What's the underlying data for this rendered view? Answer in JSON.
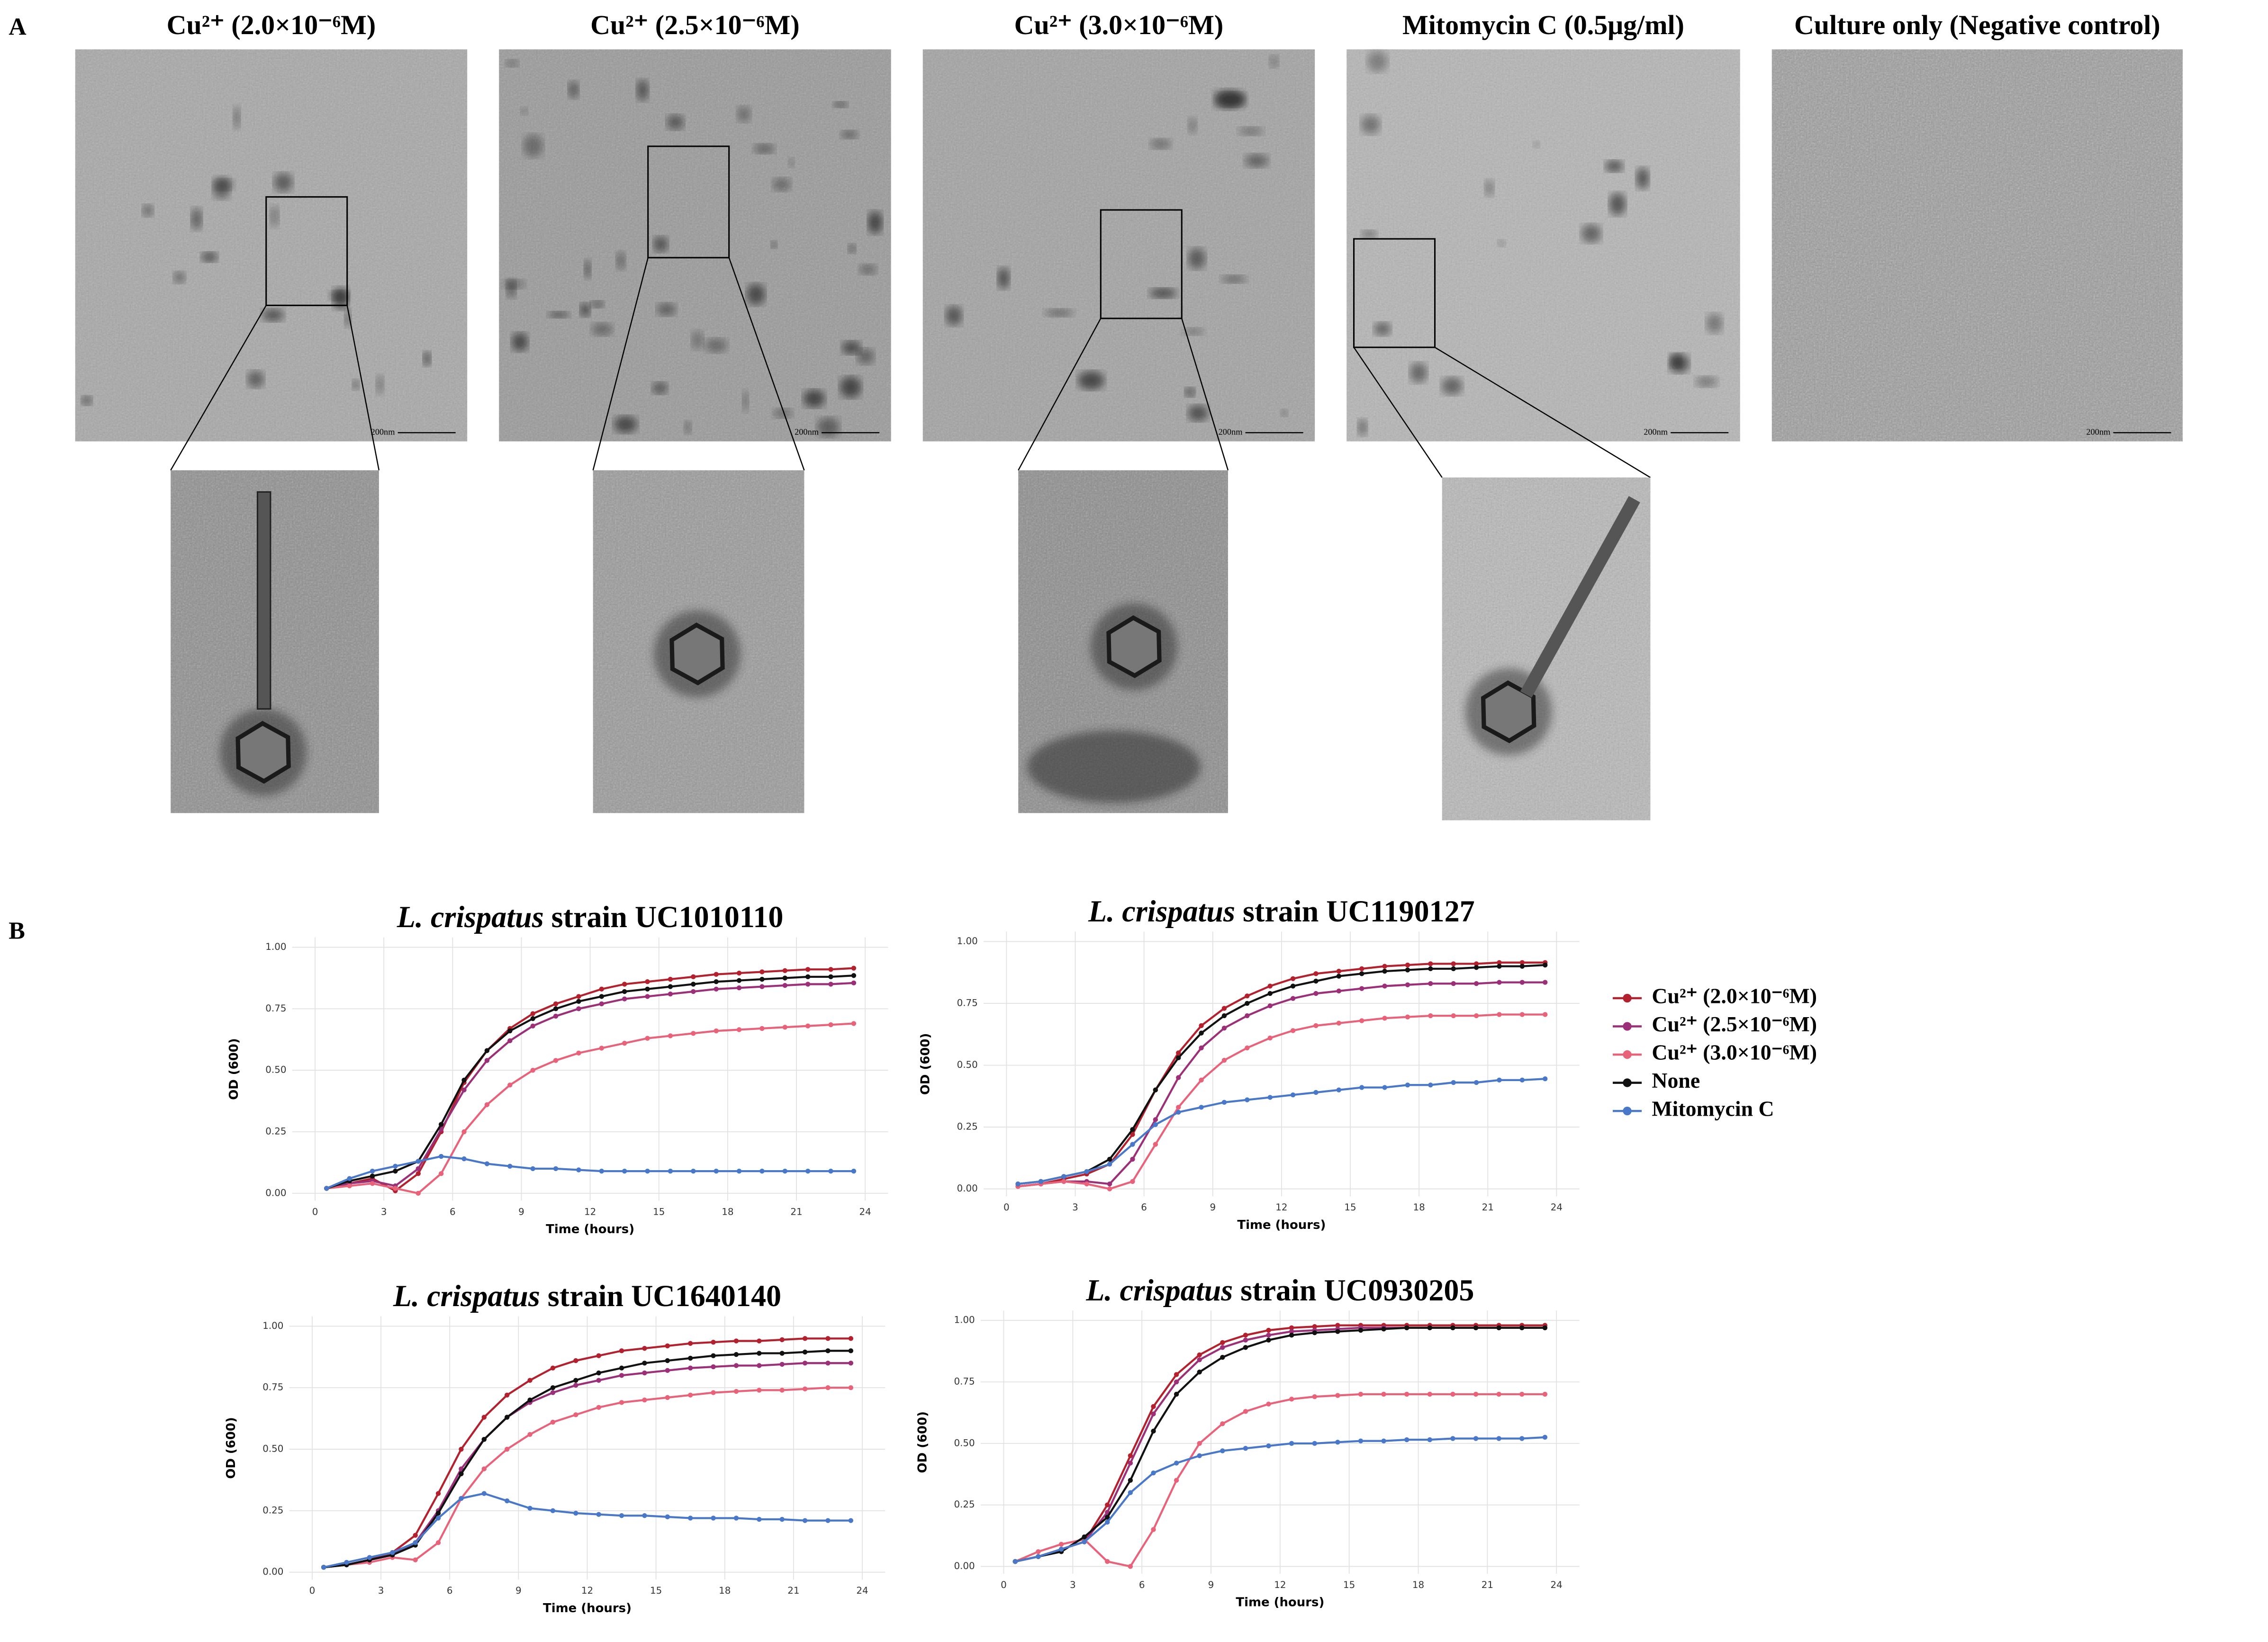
{
  "panel_a": {
    "label": "A",
    "micrographs": [
      {
        "title": "Cu²⁺ (2.0×10⁻⁶M)",
        "scale_bar": "200nm"
      },
      {
        "title": "Cu²⁺ (2.5×10⁻⁶M)",
        "scale_bar": "200nm"
      },
      {
        "title": "Cu²⁺ (3.0×10⁻⁶M)",
        "scale_bar": "200nm"
      },
      {
        "title": "Mitomycin C (0.5μg/ml)",
        "scale_bar": "200nm"
      },
      {
        "title": "Culture only (Negative control)",
        "scale_bar": "200nm"
      }
    ]
  },
  "panel_b": {
    "label": "B"
  },
  "chart_data": [
    {
      "type": "line",
      "title": {
        "species": "L. crispatus",
        "strain": "strain UC1010110"
      },
      "xlabel": "Time (hours)",
      "ylabel": "OD (600)",
      "grid": true,
      "xlim": [
        -1,
        25
      ],
      "ylim": [
        -0.03,
        1.04
      ],
      "xticks": [
        0,
        3,
        6,
        9,
        12,
        15,
        18,
        21,
        24
      ],
      "yticks": [
        {
          "value": 0,
          "label": "0.00"
        },
        {
          "value": 0.25,
          "label": "0.25"
        },
        {
          "value": 0.5,
          "label": "0.50"
        },
        {
          "value": 0.75,
          "label": "0.75"
        },
        {
          "value": 1,
          "label": "1.00"
        }
      ],
      "x": [
        0.5,
        1.5,
        2.5,
        3.5,
        4.5,
        5.5,
        6.5,
        7.5,
        8.5,
        9.5,
        10.5,
        11.5,
        12.5,
        13.5,
        14.5,
        15.5,
        16.5,
        17.5,
        18.5,
        19.5,
        20.5,
        21.5,
        22.5,
        23.5
      ],
      "series": [
        {
          "color": "#b3202e",
          "values": [
            0.02,
            0.04,
            0.06,
            0.01,
            0.08,
            0.25,
            0.45,
            0.58,
            0.67,
            0.73,
            0.77,
            0.8,
            0.83,
            0.85,
            0.86,
            0.87,
            0.88,
            0.89,
            0.895,
            0.9,
            0.905,
            0.91,
            0.91,
            0.915
          ]
        },
        {
          "color": "#9b2f78",
          "values": [
            0.02,
            0.04,
            0.05,
            0.03,
            0.1,
            0.26,
            0.42,
            0.54,
            0.62,
            0.68,
            0.72,
            0.75,
            0.77,
            0.79,
            0.8,
            0.81,
            0.82,
            0.83,
            0.835,
            0.84,
            0.845,
            0.85,
            0.85,
            0.855
          ]
        },
        {
          "color": "#e8637a",
          "values": [
            0.02,
            0.03,
            0.04,
            0.02,
            0.0,
            0.08,
            0.25,
            0.36,
            0.44,
            0.5,
            0.54,
            0.57,
            0.59,
            0.61,
            0.63,
            0.64,
            0.65,
            0.66,
            0.665,
            0.67,
            0.675,
            0.68,
            0.685,
            0.69
          ]
        },
        {
          "color": "#111111",
          "values": [
            0.02,
            0.05,
            0.07,
            0.09,
            0.13,
            0.28,
            0.46,
            0.58,
            0.66,
            0.71,
            0.75,
            0.78,
            0.8,
            0.82,
            0.83,
            0.84,
            0.85,
            0.86,
            0.865,
            0.87,
            0.875,
            0.88,
            0.88,
            0.885
          ]
        },
        {
          "color": "#4a78c8",
          "values": [
            0.02,
            0.06,
            0.09,
            0.11,
            0.13,
            0.15,
            0.14,
            0.12,
            0.11,
            0.1,
            0.1,
            0.095,
            0.09,
            0.09,
            0.09,
            0.09,
            0.09,
            0.09,
            0.09,
            0.09,
            0.09,
            0.09,
            0.09,
            0.09
          ]
        }
      ]
    },
    {
      "type": "line",
      "title": {
        "species": "L. crispatus",
        "strain": "strain UC1190127"
      },
      "xlabel": "Time (hours)",
      "ylabel": "OD (600)",
      "grid": true,
      "legend": "right",
      "xlim": [
        -1,
        25
      ],
      "ylim": [
        -0.03,
        1.04
      ],
      "xticks": [
        0,
        3,
        6,
        9,
        12,
        15,
        18,
        21,
        24
      ],
      "yticks": [
        {
          "value": 0,
          "label": "0.00"
        },
        {
          "value": 0.25,
          "label": "0.25"
        },
        {
          "value": 0.5,
          "label": "0.50"
        },
        {
          "value": 0.75,
          "label": "0.75"
        },
        {
          "value": 1,
          "label": "1.00"
        }
      ],
      "x": [
        0.5,
        1.5,
        2.5,
        3.5,
        4.5,
        5.5,
        6.5,
        7.5,
        8.5,
        9.5,
        10.5,
        11.5,
        12.5,
        13.5,
        14.5,
        15.5,
        16.5,
        17.5,
        18.5,
        19.5,
        20.5,
        21.5,
        22.5,
        23.5
      ],
      "series": [
        {
          "name": "Cu²⁺ (2.0×10⁻⁶M)",
          "color": "#b3202e",
          "values": [
            0.01,
            0.02,
            0.04,
            0.06,
            0.1,
            0.22,
            0.4,
            0.55,
            0.66,
            0.73,
            0.78,
            0.82,
            0.85,
            0.87,
            0.88,
            0.89,
            0.9,
            0.905,
            0.91,
            0.91,
            0.91,
            0.915,
            0.915,
            0.915
          ]
        },
        {
          "name": "Cu²⁺ (2.5×10⁻⁶M)",
          "color": "#9b2f78",
          "values": [
            0.01,
            0.02,
            0.03,
            0.03,
            0.02,
            0.12,
            0.28,
            0.45,
            0.57,
            0.65,
            0.7,
            0.74,
            0.77,
            0.79,
            0.8,
            0.81,
            0.82,
            0.825,
            0.83,
            0.83,
            0.83,
            0.835,
            0.835,
            0.835
          ]
        },
        {
          "name": "Cu²⁺ (3.0×10⁻⁶M)",
          "color": "#e8637a",
          "values": [
            0.01,
            0.02,
            0.03,
            0.02,
            0.0,
            0.03,
            0.18,
            0.33,
            0.44,
            0.52,
            0.57,
            0.61,
            0.64,
            0.66,
            0.67,
            0.68,
            0.69,
            0.695,
            0.7,
            0.7,
            0.7,
            0.705,
            0.705,
            0.705
          ]
        },
        {
          "name": "None",
          "color": "#111111",
          "values": [
            0.02,
            0.03,
            0.05,
            0.07,
            0.12,
            0.24,
            0.4,
            0.53,
            0.63,
            0.7,
            0.75,
            0.79,
            0.82,
            0.84,
            0.86,
            0.87,
            0.88,
            0.885,
            0.89,
            0.89,
            0.895,
            0.9,
            0.9,
            0.905
          ]
        },
        {
          "name": "Mitomycin C",
          "color": "#4a78c8",
          "values": [
            0.02,
            0.03,
            0.05,
            0.07,
            0.1,
            0.18,
            0.26,
            0.31,
            0.33,
            0.35,
            0.36,
            0.37,
            0.38,
            0.39,
            0.4,
            0.41,
            0.41,
            0.42,
            0.42,
            0.43,
            0.43,
            0.44,
            0.44,
            0.445
          ]
        }
      ]
    },
    {
      "type": "line",
      "title": {
        "species": "L. crispatus",
        "strain": "strain UC1640140"
      },
      "xlabel": "Time (hours)",
      "ylabel": "OD (600)",
      "grid": true,
      "xlim": [
        -1,
        25
      ],
      "ylim": [
        -0.03,
        1.04
      ],
      "xticks": [
        0,
        3,
        6,
        9,
        12,
        15,
        18,
        21,
        24
      ],
      "yticks": [
        {
          "value": 0,
          "label": "0.00"
        },
        {
          "value": 0.25,
          "label": "0.25"
        },
        {
          "value": 0.5,
          "label": "0.50"
        },
        {
          "value": 0.75,
          "label": "0.75"
        },
        {
          "value": 1,
          "label": "1.00"
        }
      ],
      "x": [
        0.5,
        1.5,
        2.5,
        3.5,
        4.5,
        5.5,
        6.5,
        7.5,
        8.5,
        9.5,
        10.5,
        11.5,
        12.5,
        13.5,
        14.5,
        15.5,
        16.5,
        17.5,
        18.5,
        19.5,
        20.5,
        21.5,
        22.5,
        23.5
      ],
      "series": [
        {
          "color": "#b3202e",
          "values": [
            0.02,
            0.03,
            0.05,
            0.08,
            0.15,
            0.32,
            0.5,
            0.63,
            0.72,
            0.78,
            0.83,
            0.86,
            0.88,
            0.9,
            0.91,
            0.92,
            0.93,
            0.935,
            0.94,
            0.94,
            0.945,
            0.95,
            0.95,
            0.95
          ]
        },
        {
          "color": "#9b2f78",
          "values": [
            0.02,
            0.03,
            0.05,
            0.07,
            0.12,
            0.25,
            0.42,
            0.54,
            0.63,
            0.69,
            0.73,
            0.76,
            0.78,
            0.8,
            0.81,
            0.82,
            0.83,
            0.835,
            0.84,
            0.84,
            0.845,
            0.85,
            0.85,
            0.85
          ]
        },
        {
          "color": "#e8637a",
          "values": [
            0.02,
            0.03,
            0.04,
            0.06,
            0.05,
            0.12,
            0.3,
            0.42,
            0.5,
            0.56,
            0.61,
            0.64,
            0.67,
            0.69,
            0.7,
            0.71,
            0.72,
            0.73,
            0.735,
            0.74,
            0.74,
            0.745,
            0.75,
            0.75
          ]
        },
        {
          "color": "#111111",
          "values": [
            0.02,
            0.03,
            0.05,
            0.07,
            0.11,
            0.24,
            0.4,
            0.54,
            0.63,
            0.7,
            0.75,
            0.78,
            0.81,
            0.83,
            0.85,
            0.86,
            0.87,
            0.88,
            0.885,
            0.89,
            0.89,
            0.895,
            0.9,
            0.9
          ]
        },
        {
          "color": "#4a78c8",
          "values": [
            0.02,
            0.04,
            0.06,
            0.08,
            0.12,
            0.22,
            0.3,
            0.32,
            0.29,
            0.26,
            0.25,
            0.24,
            0.235,
            0.23,
            0.23,
            0.225,
            0.22,
            0.22,
            0.22,
            0.215,
            0.215,
            0.21,
            0.21,
            0.21
          ]
        }
      ]
    },
    {
      "type": "line",
      "title": {
        "species": "L. crispatus",
        "strain": "strain UC0930205"
      },
      "xlabel": "Time (hours)",
      "ylabel": "OD (600)",
      "grid": true,
      "xlim": [
        -1,
        25
      ],
      "ylim": [
        -0.03,
        1.04
      ],
      "xticks": [
        0,
        3,
        6,
        9,
        12,
        15,
        18,
        21,
        24
      ],
      "yticks": [
        {
          "value": 0,
          "label": "0.00"
        },
        {
          "value": 0.25,
          "label": "0.25"
        },
        {
          "value": 0.5,
          "label": "0.50"
        },
        {
          "value": 0.75,
          "label": "0.75"
        },
        {
          "value": 1,
          "label": "1.00"
        }
      ],
      "x": [
        0.5,
        1.5,
        2.5,
        3.5,
        4.5,
        5.5,
        6.5,
        7.5,
        8.5,
        9.5,
        10.5,
        11.5,
        12.5,
        13.5,
        14.5,
        15.5,
        16.5,
        17.5,
        18.5,
        19.5,
        20.5,
        21.5,
        22.5,
        23.5
      ],
      "series": [
        {
          "color": "#b3202e",
          "values": [
            0.02,
            0.04,
            0.07,
            0.1,
            0.25,
            0.45,
            0.65,
            0.78,
            0.86,
            0.91,
            0.94,
            0.96,
            0.97,
            0.975,
            0.98,
            0.98,
            0.98,
            0.98,
            0.98,
            0.98,
            0.98,
            0.98,
            0.98,
            0.98
          ]
        },
        {
          "color": "#9b2f78",
          "values": [
            0.02,
            0.04,
            0.07,
            0.1,
            0.22,
            0.42,
            0.62,
            0.75,
            0.84,
            0.89,
            0.92,
            0.94,
            0.955,
            0.96,
            0.965,
            0.97,
            0.97,
            0.97,
            0.97,
            0.97,
            0.97,
            0.97,
            0.97,
            0.97
          ]
        },
        {
          "color": "#e8637a",
          "values": [
            0.02,
            0.06,
            0.09,
            0.11,
            0.02,
            0.0,
            0.15,
            0.35,
            0.5,
            0.58,
            0.63,
            0.66,
            0.68,
            0.69,
            0.695,
            0.7,
            0.7,
            0.7,
            0.7,
            0.7,
            0.7,
            0.7,
            0.7,
            0.7
          ]
        },
        {
          "color": "#111111",
          "values": [
            0.02,
            0.04,
            0.06,
            0.12,
            0.2,
            0.35,
            0.55,
            0.7,
            0.79,
            0.85,
            0.89,
            0.92,
            0.94,
            0.95,
            0.955,
            0.96,
            0.965,
            0.97,
            0.97,
            0.97,
            0.97,
            0.97,
            0.97,
            0.97
          ]
        },
        {
          "color": "#4a78c8",
          "values": [
            0.02,
            0.04,
            0.07,
            0.1,
            0.18,
            0.3,
            0.38,
            0.42,
            0.45,
            0.47,
            0.48,
            0.49,
            0.5,
            0.5,
            0.505,
            0.51,
            0.51,
            0.515,
            0.515,
            0.52,
            0.52,
            0.52,
            0.52,
            0.525
          ]
        }
      ]
    }
  ]
}
